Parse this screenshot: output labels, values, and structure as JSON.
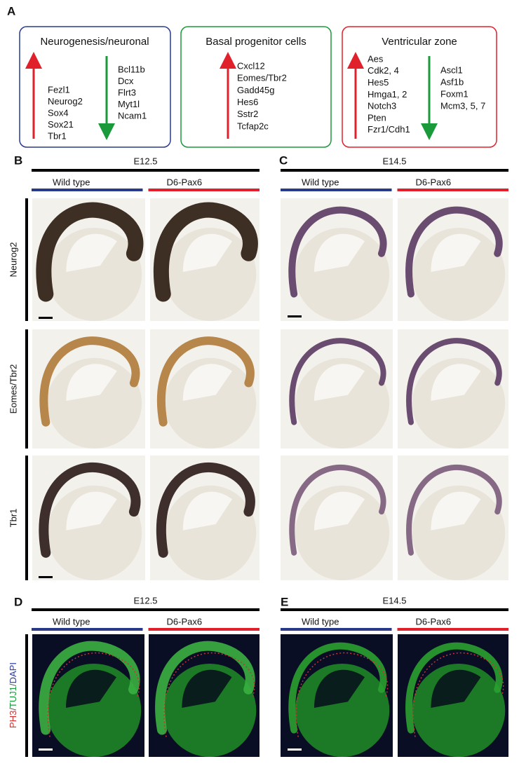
{
  "panel_a": {
    "label": "A",
    "boxes": [
      {
        "title": "Neurogenesis/neuronal",
        "up": [
          "Fezl1",
          "Neurog2",
          "Sox4",
          "Sox21",
          "Tbr1"
        ],
        "down": [
          "Bcl11b",
          "Dcx",
          "Flrt3",
          "Myt1l",
          "Ncam1"
        ]
      },
      {
        "title": "Basal progenitor cells",
        "up": [
          "Cxcl12",
          "Eomes/Tbr2",
          "Gadd45g",
          "Hes6",
          "Sstr2",
          "Tcfap2c"
        ],
        "down": []
      },
      {
        "title": "Ventricular zone",
        "up": [
          "Aes",
          "Cdk2, 4",
          "Hes5",
          "Hmga1, 2",
          "Notch3",
          "Pten",
          "Fzr1/Cdh1"
        ],
        "down": [
          "Ascl1",
          "Asf1b",
          "Foxm1",
          "Mcm3, 5, 7"
        ]
      }
    ]
  },
  "panel_b": {
    "label": "B",
    "stage": "E12.5",
    "genotypes": [
      "Wild type",
      "D6-Pax6"
    ],
    "rows": [
      "Neurog2",
      "Eomes/Tbr2",
      "Tbr1"
    ]
  },
  "panel_c": {
    "label": "C",
    "stage": "E14.5",
    "genotypes": [
      "Wild type",
      "D6-Pax6"
    ]
  },
  "panel_d": {
    "label": "D",
    "stage": "E12.5",
    "genotypes": [
      "Wild type",
      "D6-Pax6"
    ],
    "stain": [
      "PH3",
      "TUJ1",
      "DAPI"
    ],
    "separator": "/"
  },
  "panel_e": {
    "label": "E",
    "stage": "E14.5",
    "genotypes": [
      "Wild type",
      "D6-Pax6"
    ]
  }
}
